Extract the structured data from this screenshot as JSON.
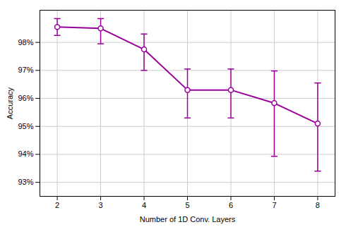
{
  "chart_data": {
    "type": "line",
    "x": [
      2,
      3,
      4,
      5,
      6,
      7,
      8
    ],
    "values": [
      98.55,
      98.5,
      97.75,
      96.3,
      96.3,
      95.83,
      95.1
    ],
    "yerr_upper": [
      0.3,
      0.35,
      0.55,
      0.75,
      0.75,
      1.15,
      1.45
    ],
    "yerr_lower": [
      0.3,
      0.55,
      0.75,
      1.0,
      1.0,
      1.9,
      1.7
    ],
    "color": "#990099",
    "marker": "circle",
    "xlabel": "Number of 1D Conv. Layers",
    "ylabel": "Accuracy",
    "xlim": [
      1.6,
      8.4
    ],
    "ylim": [
      92.5,
      99.15
    ],
    "xticks": [
      2,
      3,
      4,
      5,
      6,
      7,
      8
    ],
    "yticks": [
      {
        "value": 93,
        "label": "93%"
      },
      {
        "value": 94,
        "label": "94%"
      },
      {
        "value": 95,
        "label": "95%"
      },
      {
        "value": 96,
        "label": "96%"
      },
      {
        "value": 97,
        "label": "97%"
      },
      {
        "value": 98,
        "label": "98%"
      }
    ],
    "grid": true
  }
}
